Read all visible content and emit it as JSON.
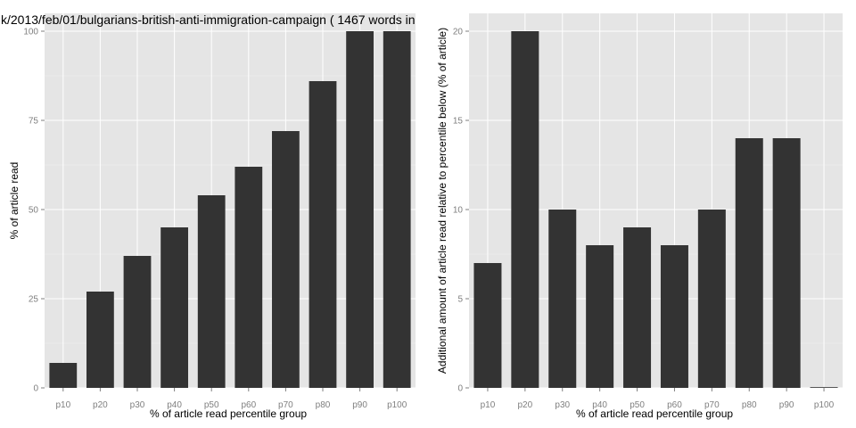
{
  "colors": {
    "panel_background": "#e5e5e5",
    "bar_fill": "#333333",
    "grid": "#ffffff",
    "tick_text": "#7f7f7f"
  },
  "chart_data": [
    {
      "type": "bar",
      "title": "k/2013/feb/01/bulgarians-british-anti-immigration-campaign ( 1467 words in",
      "categories": [
        "p10",
        "p20",
        "p30",
        "p40",
        "p50",
        "p60",
        "p70",
        "p80",
        "p90",
        "p100"
      ],
      "values": [
        7,
        27,
        37,
        45,
        54,
        62,
        72,
        86,
        100,
        100
      ],
      "xlabel": "% of article read percentile group",
      "ylabel": "% of article read",
      "ylim": [
        0,
        105
      ],
      "yticks": [
        0,
        25,
        50,
        75,
        100
      ],
      "grid": true
    },
    {
      "type": "bar",
      "title": "",
      "categories": [
        "p10",
        "p20",
        "p30",
        "p40",
        "p50",
        "p60",
        "p70",
        "p80",
        "p90",
        "p100"
      ],
      "values": [
        7,
        20,
        10,
        8,
        9,
        8,
        10,
        14,
        14,
        0
      ],
      "xlabel": "% of article read percentile group",
      "ylabel": "Additional amount of article read relative to percentile below (% of article)",
      "ylim": [
        0,
        21
      ],
      "yticks": [
        0,
        5,
        10,
        15,
        20
      ],
      "grid": true
    }
  ]
}
